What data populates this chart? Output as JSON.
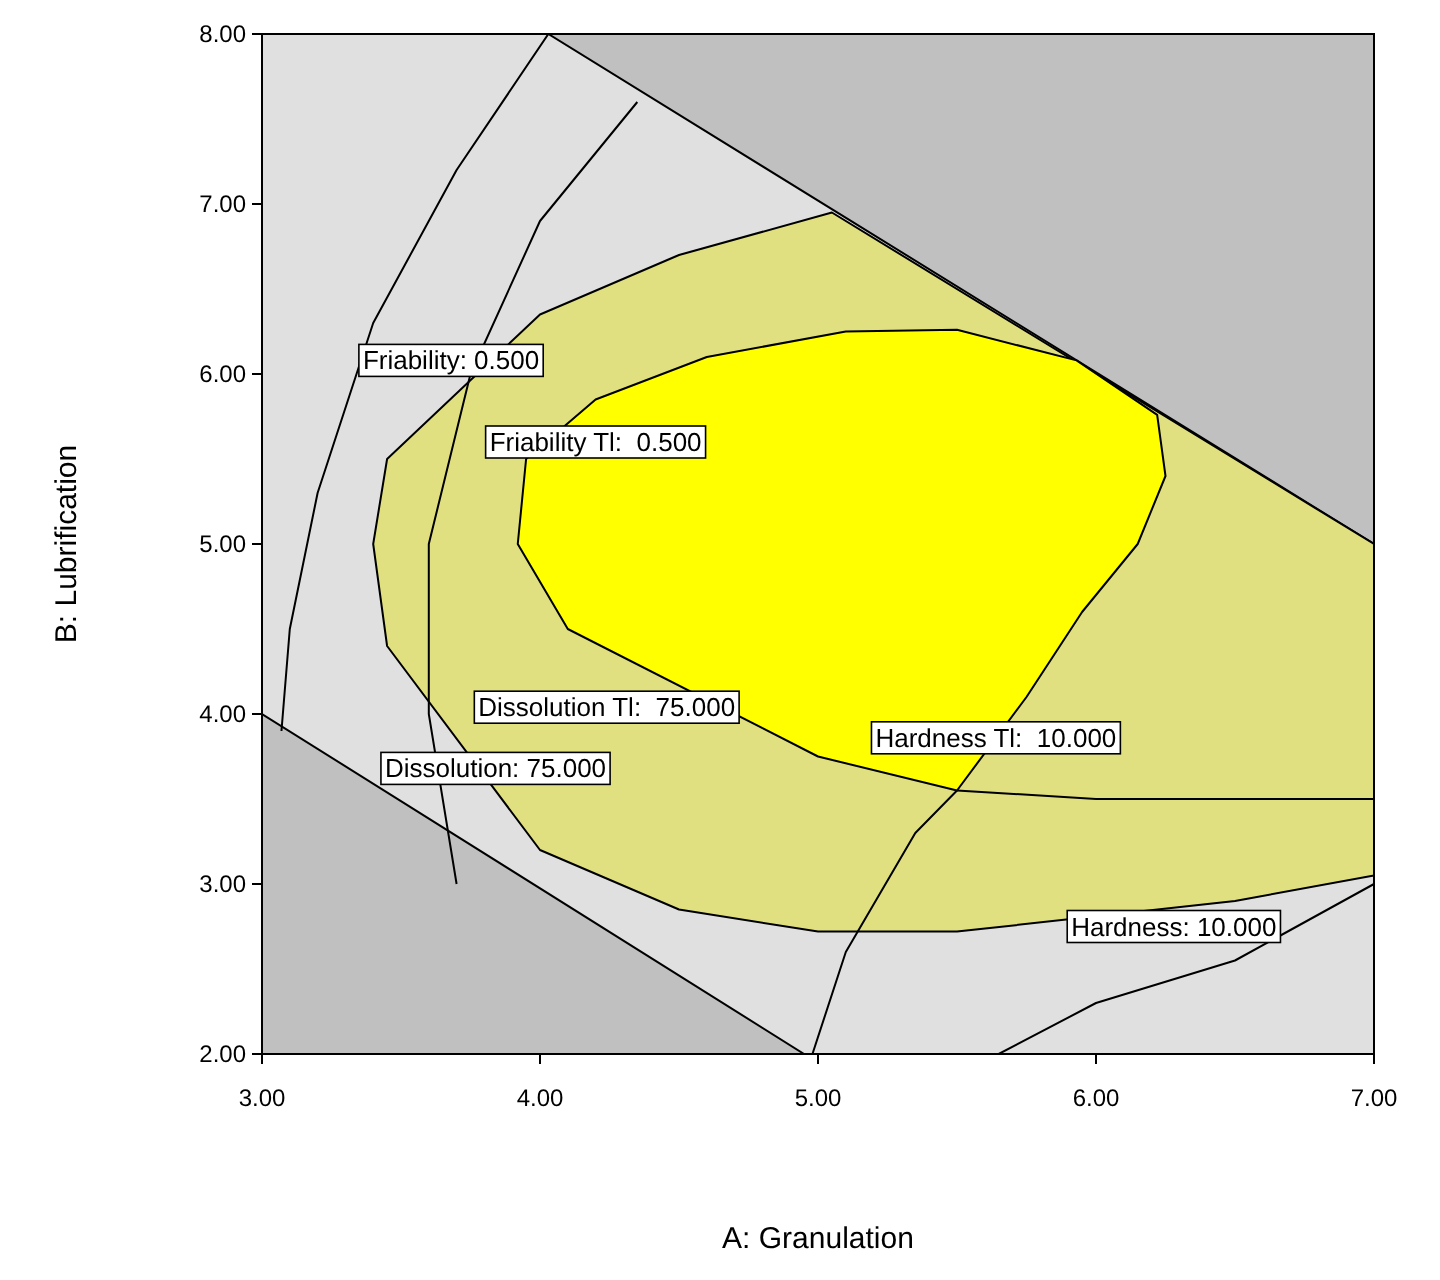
{
  "chart_data": {
    "type": "line",
    "xlabel": "A: Granulation",
    "ylabel": "B: Lubrification",
    "xlim": [
      3,
      7
    ],
    "ylim": [
      2,
      8
    ],
    "xticks": [
      {
        "value": 3,
        "label": "3.00"
      },
      {
        "value": 4,
        "label": "4.00"
      },
      {
        "value": 5,
        "label": "5.00"
      },
      {
        "value": 6,
        "label": "6.00"
      },
      {
        "value": 7,
        "label": "7.00"
      }
    ],
    "yticks": [
      {
        "value": 2,
        "label": "2.00"
      },
      {
        "value": 3,
        "label": "3.00"
      },
      {
        "value": 4,
        "label": "4.00"
      },
      {
        "value": 5,
        "label": "5.00"
      },
      {
        "value": 6,
        "label": "6.00"
      },
      {
        "value": 7,
        "label": "7.00"
      },
      {
        "value": 8,
        "label": "8.00"
      }
    ],
    "series": [
      {
        "type": "area",
        "color": "#c0c0c0",
        "x": [
          4.03,
          7,
          7
        ],
        "values": [
          8,
          8,
          5
        ]
      },
      {
        "type": "area",
        "color": "#c0c0c0",
        "x": [
          3,
          3,
          4.95
        ],
        "values": [
          2,
          4,
          2
        ]
      },
      {
        "type": "area",
        "color": "#e0e080",
        "x": [
          5.05,
          7,
          7,
          6.5,
          6,
          5.5,
          5,
          4.5,
          4,
          3.7,
          3.45,
          3.4,
          3.45,
          3.7,
          4,
          4.5
        ],
        "values": [
          6.95,
          5,
          3.05,
          2.9,
          null,
          2.72,
          2.72,
          2.85,
          3.2,
          null,
          4.4,
          5,
          5.5,
          null,
          6.35,
          6.7
        ]
      },
      {
        "type": "area",
        "color": "#ffff00",
        "x": [
          3.92,
          3.95,
          4.2,
          4.6,
          5.1,
          5.5,
          5.93,
          6.22,
          6.25,
          6.15,
          5.95,
          5.75,
          5.5,
          5,
          4.5,
          4.1
        ],
        "values": [
          5,
          5.5,
          5.85,
          6.1,
          6.25,
          6.26,
          6.08,
          5.76,
          5.4,
          5,
          4.6,
          4.1,
          3.55,
          3.75,
          null,
          4.5
        ]
      },
      {
        "color": "#000000",
        "x": [
          4.03,
          3.7,
          3.4,
          3.2,
          3.1,
          3.07
        ],
        "values": [
          8,
          7.2,
          6.3,
          5.3,
          4.5,
          3.9
        ]
      },
      {
        "color": "#000000",
        "x": [
          4.35,
          4,
          3.75,
          3.6,
          3.6,
          3.7
        ],
        "values": [
          7.6,
          6.9,
          6,
          5,
          4,
          3
        ]
      },
      {
        "color": "#000000",
        "x": [
          5.5,
          6,
          7
        ],
        "values": [
          3.55,
          3.5,
          3.5
        ]
      },
      {
        "color": "#000000",
        "x": [
          5.5,
          5.35,
          5.1,
          4.98
        ],
        "values": [
          3.55,
          3.3,
          2.6,
          2
        ]
      },
      {
        "color": "#000000",
        "x": [
          5.65,
          6,
          6.5,
          7
        ],
        "values": [
          2,
          2.3,
          2.55,
          3
        ]
      }
    ],
    "annotations": [
      "Friability: 0.500",
      "Friability Tl:  0.500",
      "Dissolution Tl:  75.000",
      "Dissolution: 75.000",
      "Hardness Tl:  10.000",
      "Hardness: 10.000"
    ]
  }
}
